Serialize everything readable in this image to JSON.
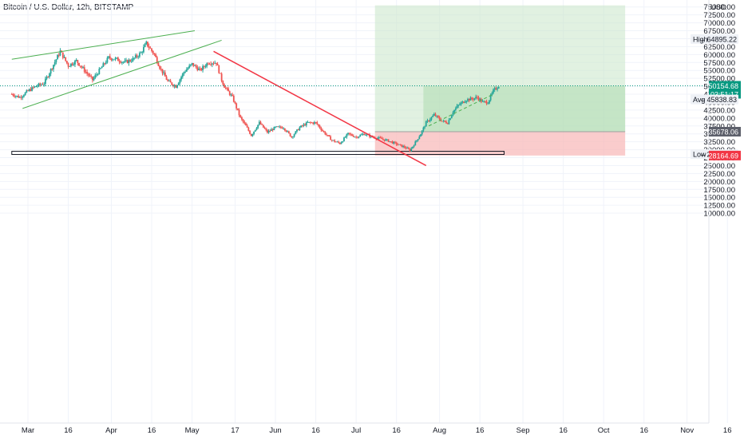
{
  "chart_data": {
    "type": "candlestick",
    "title": "Bitcoin / U.S. Dollar, 12h, BITSTAMP",
    "currency": "USD",
    "ylim": [
      8500,
      75500
    ],
    "y_ticks": [
      10000,
      12500,
      15000,
      17500,
      20000,
      22500,
      25000,
      27500,
      30000,
      32500,
      35000,
      37500,
      40000,
      42500,
      45000,
      47500,
      50000,
      52500,
      55000,
      57500,
      60000,
      62500,
      65000,
      67500,
      70000,
      72500,
      75000
    ],
    "x_ticks": [
      "Mar",
      "16",
      "Apr",
      "16",
      "May",
      "17",
      "Jun",
      "16",
      "Jul",
      "16",
      "Aug",
      "16",
      "Sep",
      "16",
      "Oct",
      "16",
      "Nov",
      "16"
    ],
    "x_range": [
      "2021-02-23",
      "2021-11-22"
    ],
    "grid": true,
    "colors": {
      "up": "#26a69a",
      "down": "#ef5350",
      "profit_zone": "#c8e6c9",
      "loss_zone": "#f8bbbb",
      "trend_green": "#4caf50",
      "trend_red": "#f23645",
      "current": "#089981"
    },
    "price_markers": [
      {
        "kind": "label",
        "label": "High",
        "value": 64895.22,
        "text": "64895.22"
      },
      {
        "kind": "current",
        "value": 50154.68,
        "text": "50154.68",
        "countdown": "03:51:17"
      },
      {
        "kind": "label",
        "label": "Avg",
        "value": 45838.83,
        "text": "45838.83"
      },
      {
        "kind": "entry",
        "value": 35678.06,
        "text": "35678.06"
      },
      {
        "kind": "label",
        "label": "Low",
        "value": 28600.0,
        "text": "28600.00"
      },
      {
        "kind": "stop",
        "value": 28164.69,
        "text": "28164.69"
      }
    ],
    "position": {
      "entry": 35678.06,
      "target": 75500,
      "stop": 28164.69,
      "start": "2021-07-08",
      "end": "2021-10-09",
      "filled_from": "2021-07-26"
    },
    "support_zone": {
      "from": 28500,
      "to": 29500,
      "start": "2021-02-23",
      "end": "2021-08-25"
    },
    "trendlines": [
      {
        "color": "green",
        "points": [
          [
            "2021-02-23",
            58500
          ],
          [
            "2021-05-02",
            67500
          ]
        ]
      },
      {
        "color": "green",
        "points": [
          [
            "2021-02-27",
            43000
          ],
          [
            "2021-05-12",
            64500
          ]
        ]
      },
      {
        "color": "red",
        "points": [
          [
            "2021-05-09",
            61000
          ],
          [
            "2021-07-27",
            25000
          ]
        ]
      },
      {
        "color": "green-dashed",
        "points": [
          [
            "2021-07-28",
            37500
          ],
          [
            "2021-08-21",
            47500
          ]
        ]
      }
    ],
    "price_path": [
      [
        "2021-02-23",
        47500
      ],
      [
        "2021-02-26",
        46500
      ],
      [
        "2021-03-01",
        48500
      ],
      [
        "2021-03-04",
        50000
      ],
      [
        "2021-03-07",
        51000
      ],
      [
        "2021-03-10",
        56000
      ],
      [
        "2021-03-13",
        61000
      ],
      [
        "2021-03-16",
        56500
      ],
      [
        "2021-03-19",
        58000
      ],
      [
        "2021-03-22",
        55000
      ],
      [
        "2021-03-25",
        52000
      ],
      [
        "2021-03-28",
        55500
      ],
      [
        "2021-03-31",
        59000
      ],
      [
        "2021-04-03",
        58500
      ],
      [
        "2021-04-06",
        57500
      ],
      [
        "2021-04-09",
        58500
      ],
      [
        "2021-04-12",
        60500
      ],
      [
        "2021-04-14",
        63500
      ],
      [
        "2021-04-17",
        60000
      ],
      [
        "2021-04-19",
        56000
      ],
      [
        "2021-04-22",
        51500
      ],
      [
        "2021-04-25",
        50000
      ],
      [
        "2021-04-28",
        54500
      ],
      [
        "2021-05-01",
        57000
      ],
      [
        "2021-05-04",
        55000
      ],
      [
        "2021-05-07",
        57500
      ],
      [
        "2021-05-10",
        57500
      ],
      [
        "2021-05-12",
        52000
      ],
      [
        "2021-05-13",
        50000
      ],
      [
        "2021-05-16",
        46500
      ],
      [
        "2021-05-19",
        40000
      ],
      [
        "2021-05-21",
        37500
      ],
      [
        "2021-05-23",
        34500
      ],
      [
        "2021-05-26",
        38500
      ],
      [
        "2021-05-29",
        35500
      ],
      [
        "2021-06-01",
        37000
      ],
      [
        "2021-06-04",
        37000
      ],
      [
        "2021-06-07",
        34000
      ],
      [
        "2021-06-10",
        37000
      ],
      [
        "2021-06-13",
        38500
      ],
      [
        "2021-06-16",
        38500
      ],
      [
        "2021-06-19",
        35500
      ],
      [
        "2021-06-22",
        33000
      ],
      [
        "2021-06-25",
        32000
      ],
      [
        "2021-06-28",
        35000
      ],
      [
        "2021-07-01",
        34000
      ],
      [
        "2021-07-04",
        35000
      ],
      [
        "2021-07-07",
        34000
      ],
      [
        "2021-07-10",
        33500
      ],
      [
        "2021-07-13",
        32800
      ],
      [
        "2021-07-16",
        31800
      ],
      [
        "2021-07-19",
        30800
      ],
      [
        "2021-07-21",
        29800
      ],
      [
        "2021-07-23",
        32300
      ],
      [
        "2021-07-25",
        35000
      ],
      [
        "2021-07-27",
        38500
      ],
      [
        "2021-07-30",
        41000
      ],
      [
        "2021-08-02",
        39000
      ],
      [
        "2021-08-04",
        38500
      ],
      [
        "2021-08-06",
        42000
      ],
      [
        "2021-08-08",
        44000
      ],
      [
        "2021-08-11",
        45800
      ],
      [
        "2021-08-13",
        46000
      ],
      [
        "2021-08-15",
        46500
      ],
      [
        "2021-08-17",
        45000
      ],
      [
        "2021-08-19",
        45000
      ],
      [
        "2021-08-21",
        48500
      ],
      [
        "2021-08-23",
        50154.68
      ]
    ]
  }
}
